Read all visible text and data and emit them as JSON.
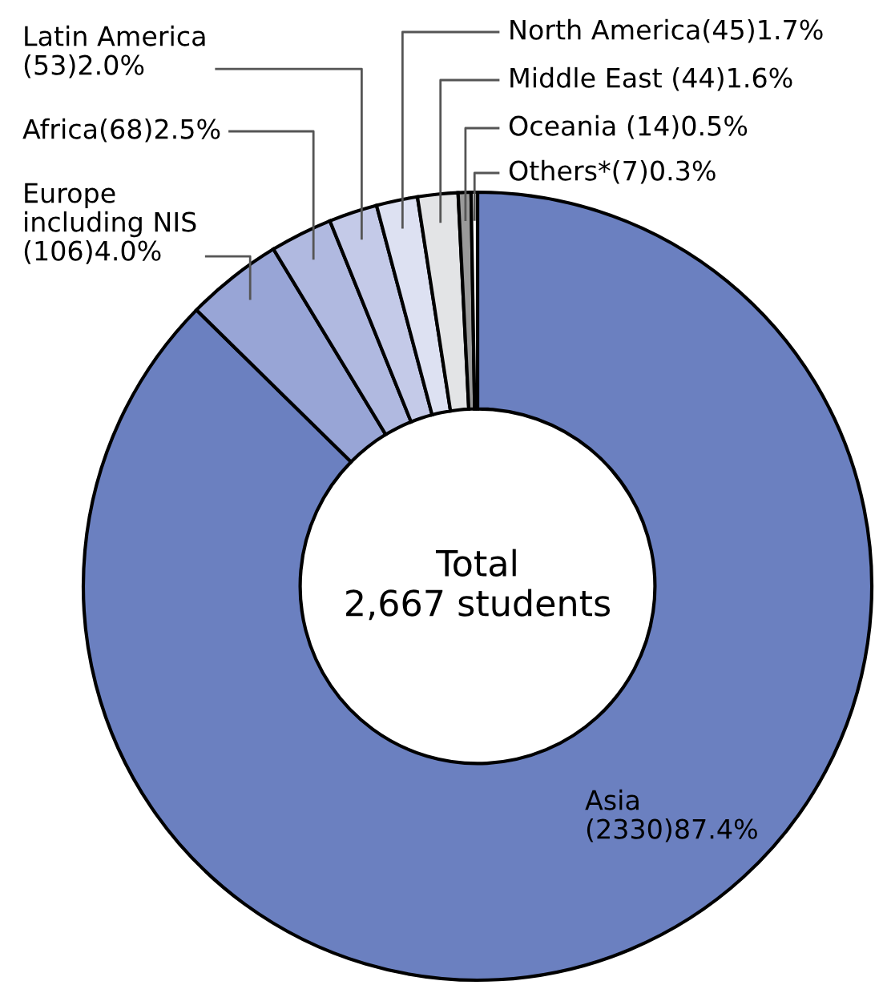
{
  "chart_data": {
    "type": "donut",
    "categories": [
      "Asia",
      "Europe\nincluding NIS",
      "Africa",
      "Latin America",
      "North America",
      "Middle East",
      "Oceania",
      "Others*"
    ],
    "values": [
      2330,
      106,
      68,
      53,
      45,
      44,
      14,
      7
    ],
    "value_labels": [
      "(2330)87.4%",
      "(106)4.0%",
      "(68)2.5%",
      "(53)2.0%",
      "(45)1.7%",
      "(44)1.6%",
      "(14)0.5%",
      "(7)0.3%"
    ],
    "colors": [
      "#6b80c0",
      "#98a5d6",
      "#b0b9e0",
      "#c4cae8",
      "#dde1f2",
      "#e3e4e6",
      "#9a9a9a",
      "#ffffff"
    ],
    "annotations": [
      "Total\n2,667 students"
    ]
  }
}
